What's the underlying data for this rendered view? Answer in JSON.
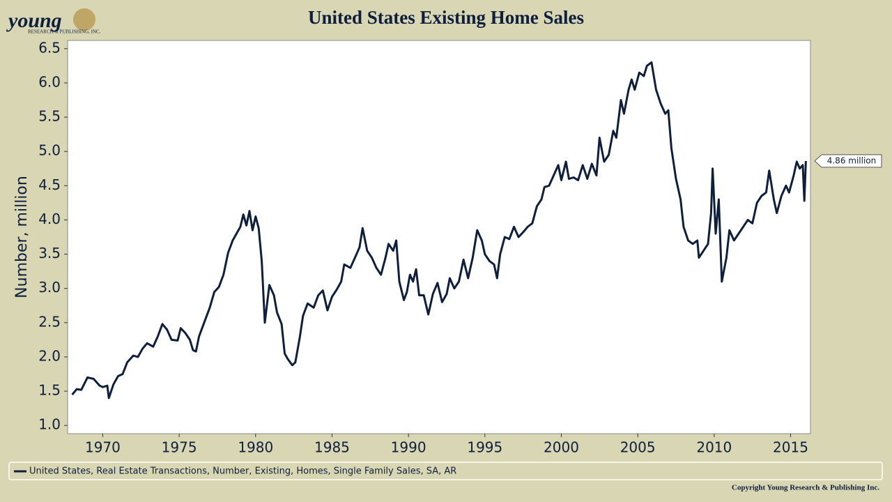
{
  "chart_data": {
    "type": "line",
    "title": "United States Existing Home Sales",
    "ylabel": "Number, million",
    "logo": {
      "name": "young",
      "sub": "RESEARCH & PUBLISHING, INC."
    },
    "copyright": "Copyright Young Research & Publishing Inc.",
    "legend": "bottom",
    "annotations": [
      {
        "label": "4.86 million",
        "value": 4.86
      }
    ],
    "xlim": [
      1967.7,
      2016.3
    ],
    "ylim": [
      0.88,
      6.62
    ],
    "xticks": [
      1970,
      1975,
      1980,
      1985,
      1990,
      1995,
      2000,
      2005,
      2010,
      2015
    ],
    "yticks": [
      {
        "value": 1,
        "label": "1.0"
      },
      1.5,
      {
        "value": 2,
        "label": "2.0"
      },
      2.5,
      {
        "value": 3,
        "label": "3.0"
      },
      3.5,
      {
        "value": 4,
        "label": "4.0"
      },
      4.5,
      {
        "value": 5,
        "label": "5.0"
      },
      5.5,
      {
        "value": 6,
        "label": "6.0"
      },
      6.5
    ],
    "x": [
      1968.0,
      1968.3,
      1968.6,
      1969.0,
      1969.4,
      1969.8,
      1970.0,
      1970.3,
      1970.4,
      1970.7,
      1971.0,
      1971.3,
      1971.6,
      1972.0,
      1972.3,
      1972.6,
      1972.9,
      1973.3,
      1973.6,
      1973.9,
      1974.2,
      1974.5,
      1974.9,
      1975.1,
      1975.4,
      1975.7,
      1975.9,
      1976.1,
      1976.3,
      1976.6,
      1977.0,
      1977.3,
      1977.6,
      1977.9,
      1978.2,
      1978.5,
      1978.8,
      1979.0,
      1979.2,
      1979.4,
      1979.6,
      1979.8,
      1980.0,
      1980.2,
      1980.4,
      1980.6,
      1980.9,
      1981.2,
      1981.4,
      1981.7,
      1981.9,
      1982.1,
      1982.4,
      1982.6,
      1982.9,
      1983.1,
      1983.4,
      1983.8,
      1984.1,
      1984.4,
      1984.7,
      1985.0,
      1985.3,
      1985.6,
      1985.8,
      1986.2,
      1986.5,
      1986.8,
      1987.0,
      1987.3,
      1987.6,
      1987.9,
      1988.2,
      1988.5,
      1988.7,
      1989.0,
      1989.2,
      1989.4,
      1989.7,
      1989.9,
      1990.1,
      1990.3,
      1990.5,
      1990.7,
      1991.0,
      1991.3,
      1991.6,
      1991.9,
      1992.2,
      1992.5,
      1992.7,
      1993.0,
      1993.3,
      1993.6,
      1993.9,
      1994.2,
      1994.5,
      1994.8,
      1995.0,
      1995.3,
      1995.6,
      1995.8,
      1996.0,
      1996.3,
      1996.6,
      1996.9,
      1997.2,
      1997.5,
      1997.8,
      1998.1,
      1998.4,
      1998.7,
      1998.9,
      1999.2,
      1999.5,
      1999.8,
      2000.0,
      2000.3,
      2000.5,
      2000.8,
      2001.1,
      2001.4,
      2001.7,
      2002.0,
      2002.3,
      2002.5,
      2002.8,
      2003.1,
      2003.4,
      2003.6,
      2003.9,
      2004.1,
      2004.4,
      2004.6,
      2004.8,
      2005.1,
      2005.4,
      2005.6,
      2005.9,
      2006.2,
      2006.5,
      2006.8,
      2007.0,
      2007.2,
      2007.5,
      2007.8,
      2008.0,
      2008.3,
      2008.6,
      2008.9,
      2009.0,
      2009.3,
      2009.6,
      2009.8,
      2009.9,
      2010.1,
      2010.3,
      2010.5,
      2010.8,
      2011.0,
      2011.3,
      2011.6,
      2011.9,
      2012.2,
      2012.5,
      2012.8,
      2013.1,
      2013.4,
      2013.6,
      2013.9,
      2014.1,
      2014.4,
      2014.7,
      2014.9,
      2015.2,
      2015.4,
      2015.6,
      2015.8,
      2015.9,
      2016.0
    ],
    "series": [
      {
        "name": "United States, Real Estate Transactions, Number, Existing, Homes, Single Family Sales, SA, AR",
        "color": "#0d1f3c",
        "values": [
          1.45,
          1.53,
          1.52,
          1.7,
          1.68,
          1.58,
          1.56,
          1.58,
          1.4,
          1.6,
          1.72,
          1.75,
          1.92,
          2.02,
          2.0,
          2.12,
          2.2,
          2.15,
          2.3,
          2.48,
          2.4,
          2.25,
          2.24,
          2.42,
          2.35,
          2.25,
          2.1,
          2.08,
          2.3,
          2.48,
          2.72,
          2.95,
          3.02,
          3.2,
          3.52,
          3.7,
          3.82,
          3.9,
          4.08,
          3.92,
          4.13,
          3.85,
          4.05,
          3.88,
          3.4,
          2.5,
          3.05,
          2.9,
          2.65,
          2.48,
          2.05,
          1.97,
          1.88,
          1.92,
          2.3,
          2.6,
          2.78,
          2.72,
          2.9,
          2.97,
          2.68,
          2.88,
          2.98,
          3.1,
          3.35,
          3.3,
          3.45,
          3.6,
          3.88,
          3.55,
          3.45,
          3.3,
          3.2,
          3.45,
          3.65,
          3.55,
          3.7,
          3.1,
          2.83,
          2.95,
          3.2,
          3.1,
          3.28,
          2.9,
          2.9,
          2.62,
          2.92,
          3.08,
          2.8,
          2.92,
          3.15,
          3.0,
          3.1,
          3.42,
          3.15,
          3.45,
          3.85,
          3.7,
          3.5,
          3.4,
          3.35,
          3.15,
          3.5,
          3.75,
          3.72,
          3.9,
          3.75,
          3.82,
          3.9,
          3.95,
          4.2,
          4.3,
          4.48,
          4.5,
          4.65,
          4.8,
          4.58,
          4.85,
          4.6,
          4.62,
          4.58,
          4.8,
          4.6,
          4.82,
          4.65,
          5.2,
          4.85,
          4.95,
          5.3,
          5.2,
          5.75,
          5.55,
          5.9,
          6.05,
          5.9,
          6.15,
          6.1,
          6.25,
          6.3,
          5.9,
          5.7,
          5.55,
          5.6,
          5.05,
          4.6,
          4.3,
          3.9,
          3.7,
          3.65,
          3.7,
          3.45,
          3.55,
          3.65,
          4.1,
          4.75,
          3.8,
          4.3,
          3.1,
          3.45,
          3.85,
          3.7,
          3.8,
          3.9,
          4.0,
          3.95,
          4.25,
          4.35,
          4.4,
          4.72,
          4.3,
          4.1,
          4.35,
          4.5,
          4.4,
          4.65,
          4.85,
          4.75,
          4.8,
          4.28,
          4.86
        ]
      }
    ]
  }
}
